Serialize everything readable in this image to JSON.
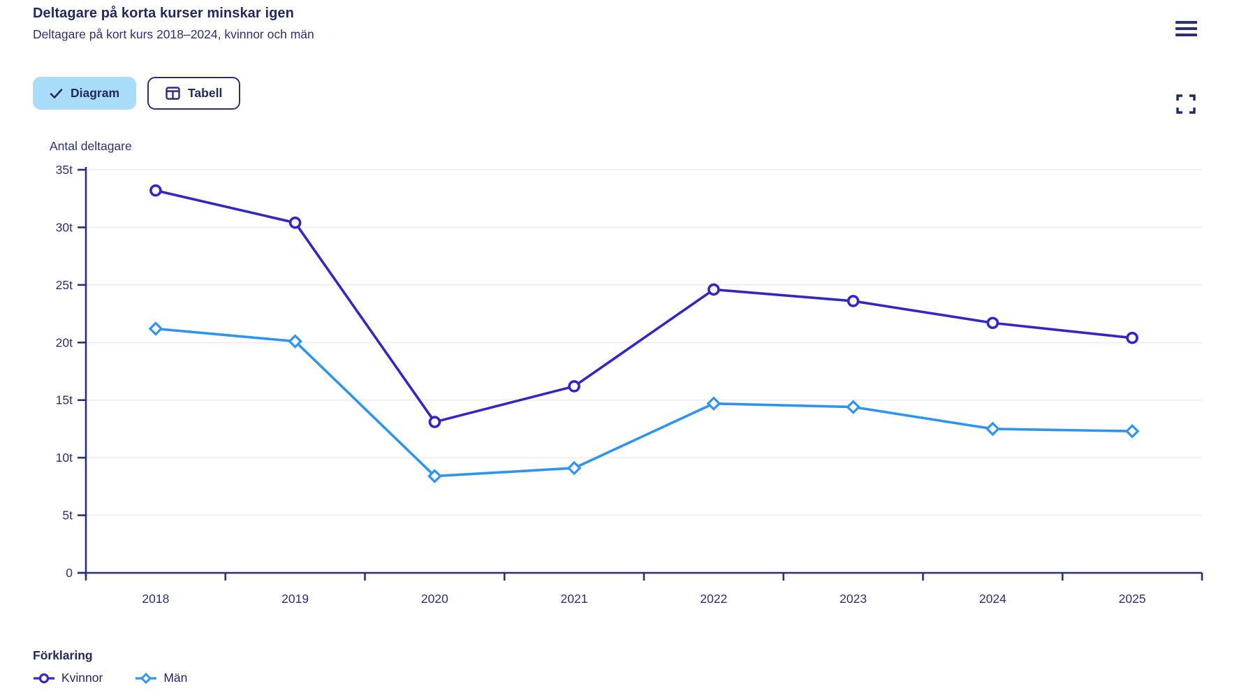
{
  "header": {
    "title": "Deltagare på korta kurser minskar igen",
    "subtitle": "Deltagare på kort kurs 2018–2024, kvinnor och män"
  },
  "toolbar": {
    "tabs": [
      {
        "label": "Diagram",
        "selected": true
      },
      {
        "label": "Tabell",
        "selected": false
      }
    ]
  },
  "icons": {
    "menu": "hamburger-menu",
    "fullscreen": "expand-corners",
    "diagram_tab": "checkmark",
    "tabell_tab": "table-grid"
  },
  "colors": {
    "navy_text": "#23285f",
    "axis": "#2b2f75",
    "gridline": "#ececec",
    "tab_active_bg": "#a9dcf8",
    "kvinnor": "#3227c3",
    "man": "#2e94ee"
  },
  "legend": {
    "title": "Förklaring"
  },
  "chart_data": {
    "type": "line",
    "title": "Deltagare på korta kurser minskar igen",
    "subtitle": "Deltagare på kort kurs 2018–2024, kvinnor och män",
    "ylabel": "Antal deltagare",
    "xlabel": "",
    "unit": "t = thousands of participants",
    "categories": [
      "2018",
      "2019",
      "2020",
      "2021",
      "2022",
      "2023",
      "2024",
      "2025"
    ],
    "series": [
      {
        "name": "Kvinnor",
        "marker": "circle",
        "color": "#3227c3",
        "values": [
          33.2,
          30.4,
          13.1,
          16.2,
          24.6,
          23.6,
          21.7,
          20.4
        ]
      },
      {
        "name": "Män",
        "marker": "diamond",
        "color": "#2e94ee",
        "values": [
          21.2,
          20.1,
          8.4,
          9.1,
          14.7,
          14.4,
          12.5,
          12.3
        ]
      }
    ],
    "ylim": [
      0,
      35
    ],
    "ytick_step": 5,
    "ytick_labels": [
      "0",
      "5t",
      "10t",
      "15t",
      "20t",
      "25t",
      "30t",
      "35t"
    ],
    "grid": true,
    "legend_position": "bottom-left"
  }
}
